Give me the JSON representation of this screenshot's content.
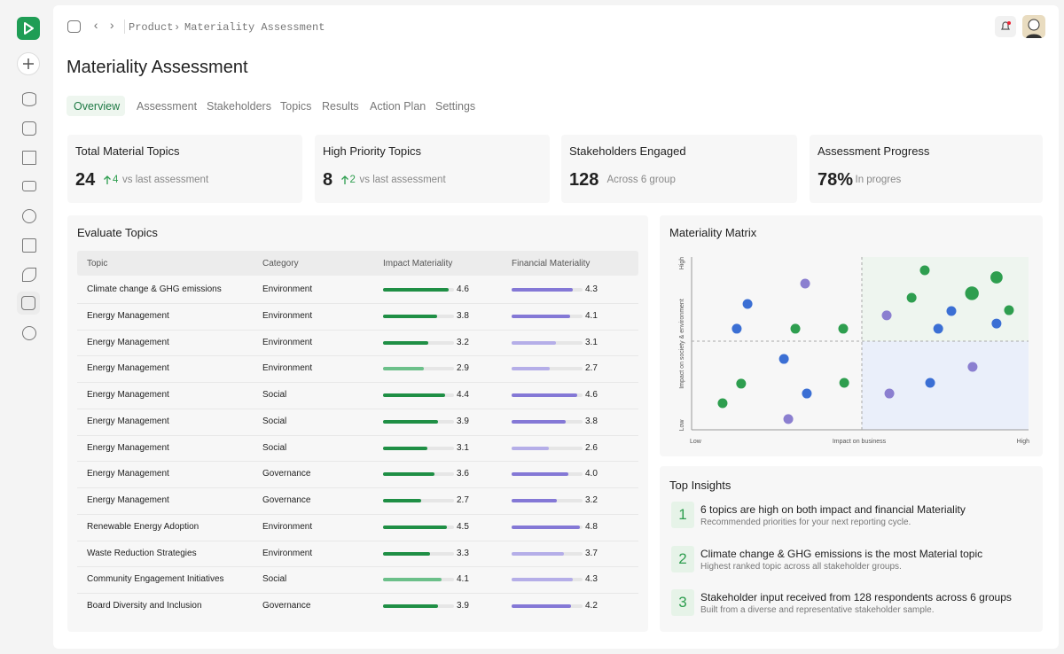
{
  "breadcrumb": [
    "Product",
    "Materiality Assessment"
  ],
  "title": "Materiality Assessment",
  "tabs": [
    "Overview",
    "Assessment",
    "Stakeholders",
    "Topics",
    "Results",
    "Action Plan",
    "Settings"
  ],
  "active_tab": 0,
  "stats": [
    {
      "label": "Total Material Topics",
      "value": 24,
      "change": 4,
      "note": "vs last assessment"
    },
    {
      "label": "High Priority Topics",
      "value": 8,
      "change": 2,
      "note": "vs last assessment"
    },
    {
      "label": "Stakeholders Engaged",
      "value": 128,
      "note": "Across 6 group"
    },
    {
      "label": "Assessment Progress",
      "value": "78%",
      "note": "In progres"
    }
  ],
  "table": {
    "title": "Evaluate Topics",
    "columns": [
      "Topic",
      "Category",
      "Impact Materiality",
      "Financial Materiality"
    ],
    "bar_max": 5,
    "rows": [
      {
        "topic": "Climate change & GHG emissions",
        "category": "Environment",
        "impact": 4.6,
        "financial": 4.3,
        "impact_color": "#1f8f45",
        "financial_color": "#8478d6"
      },
      {
        "topic": "Energy Management",
        "category": "Environment",
        "impact": 3.8,
        "financial": 4.1,
        "impact_color": "#1f8f45",
        "financial_color": "#8478d6"
      },
      {
        "topic": "Energy Management",
        "category": "Environment",
        "impact": 3.2,
        "financial": 3.1,
        "impact_color": "#1f8f45",
        "financial_color": "#b5aee8"
      },
      {
        "topic": "Energy Management",
        "category": "Environment",
        "impact": 2.9,
        "financial": 2.7,
        "impact_color": "#6cc08a",
        "financial_color": "#b5aee8"
      },
      {
        "topic": "Energy Management",
        "category": "Social",
        "impact": 4.4,
        "financial": 4.6,
        "impact_color": "#1f8f45",
        "financial_color": "#8478d6"
      },
      {
        "topic": "Energy Management",
        "category": "Social",
        "impact": 3.9,
        "financial": 3.8,
        "impact_color": "#1f8f45",
        "financial_color": "#8478d6"
      },
      {
        "topic": "Energy Management",
        "category": "Social",
        "impact": 3.1,
        "financial": 2.6,
        "impact_color": "#1f8f45",
        "financial_color": "#b5aee8"
      },
      {
        "topic": "Energy Management",
        "category": "Governance",
        "impact": 3.6,
        "financial": {
          "value": 4,
          "label": "4.0"
        },
        "impact_color": "#1f8f45",
        "financial_color": "#8478d6"
      },
      {
        "topic": "Energy Management",
        "category": "Governance",
        "impact": 2.7,
        "financial": 3.2,
        "impact_color": "#1f8f45",
        "financial_color": "#8478d6"
      },
      {
        "topic": "Renewable Energy Adoption",
        "category": "Environment",
        "impact": 4.5,
        "financial": 4.8,
        "impact_color": "#1f8f45",
        "financial_color": "#8478d6"
      },
      {
        "topic": "Waste Reduction Strategies",
        "category": "Environment",
        "impact": 3.3,
        "financial": 3.7,
        "impact_color": "#1f8f45",
        "financial_color": "#b5aee8"
      },
      {
        "topic": "Community Engagement Initiatives",
        "category": "Social",
        "impact": 4.1,
        "financial": 4.3,
        "impact_color": "#6cc08a",
        "financial_color": "#b5aee8"
      },
      {
        "topic": "Board Diversity and Inclusion",
        "category": "Governance",
        "impact": 3.9,
        "financial": 4.2,
        "impact_color": "#1f8f45",
        "financial_color": "#8478d6"
      }
    ]
  },
  "matrix": {
    "title": "Materiality Matrix",
    "y_label": "Impact on society & environment",
    "y_low": "Low",
    "y_high": "High",
    "x_label": "Impact on business",
    "x_low": "Low",
    "x_high": "High",
    "xlim": [
      0,
      100
    ],
    "ylim": [
      0,
      100
    ],
    "points": [
      {
        "x": 9.2,
        "y": 15.4,
        "size": 1,
        "color": "#2e9e4f"
      },
      {
        "x": 14.7,
        "y": 26.7,
        "size": 1,
        "color": "#2e9e4f"
      },
      {
        "x": 13.4,
        "y": 58.5,
        "size": 1,
        "color": "#3b6fd4"
      },
      {
        "x": 16.6,
        "y": 72.8,
        "size": 1,
        "color": "#3b6fd4"
      },
      {
        "x": 27.4,
        "y": 41,
        "size": 1,
        "color": "#3b6fd4"
      },
      {
        "x": 28.7,
        "y": 6.2,
        "size": 1,
        "color": "#8b7fd0"
      },
      {
        "x": 30.8,
        "y": 58.5,
        "size": 1,
        "color": "#2e9e4f"
      },
      {
        "x": 33.7,
        "y": 84.6,
        "size": 1,
        "color": "#8b7fd0"
      },
      {
        "x": 34.2,
        "y": 21,
        "size": 1,
        "color": "#3b6fd4"
      },
      {
        "x": 45,
        "y": 58.5,
        "size": 1,
        "color": "#2e9e4f"
      },
      {
        "x": 45.3,
        "y": 27.2,
        "size": 1,
        "color": "#2e9e4f"
      },
      {
        "x": 57.9,
        "y": 66.2,
        "size": 1,
        "color": "#8b7fd0"
      },
      {
        "x": 58.7,
        "y": 21,
        "size": 1,
        "color": "#8b7fd0"
      },
      {
        "x": 65.3,
        "y": 76.4,
        "size": 1,
        "color": "#2e9e4f"
      },
      {
        "x": 69.2,
        "y": 92.3,
        "size": 1,
        "color": "#2e9e4f"
      },
      {
        "x": 70.8,
        "y": 27.2,
        "size": 1,
        "color": "#3b6fd4"
      },
      {
        "x": 73.2,
        "y": 58.5,
        "size": 1,
        "color": "#3b6fd4"
      },
      {
        "x": 77.1,
        "y": 68.7,
        "size": 1,
        "color": "#3b6fd4"
      },
      {
        "x": 83.2,
        "y": 79,
        "size": 1.4,
        "color": "#2e9e4f"
      },
      {
        "x": 83.4,
        "y": 36.4,
        "size": 1,
        "color": "#8b7fd0"
      },
      {
        "x": 90.5,
        "y": 88.2,
        "size": 1.25,
        "color": "#2e9e4f"
      },
      {
        "x": 90.5,
        "y": 61.5,
        "size": 1,
        "color": "#3b6fd4"
      },
      {
        "x": 94.2,
        "y": 69.2,
        "size": 1,
        "color": "#2e9e4f"
      }
    ]
  },
  "insights": {
    "title": "Top Insights",
    "items": [
      {
        "number": 1,
        "title": "6 topics are high on both impact and financial Materiality",
        "text": "Recommended priorities for your next reporting cycle."
      },
      {
        "number": 2,
        "title": "Climate change & GHG emissions is the most Material topic",
        "text": "Highest ranked topic across all stakeholder groups."
      },
      {
        "number": 3,
        "title": "Stakeholder input received from 128 respondents across 6 groups",
        "text": "Built from a diverse and representative stakeholder sample."
      }
    ]
  }
}
